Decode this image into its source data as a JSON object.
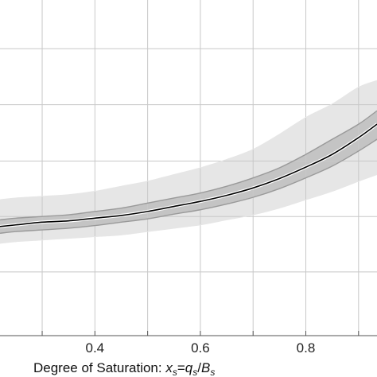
{
  "chart_data": {
    "type": "line",
    "title": "",
    "xlabel_prefix": "Degree of Saturation: ",
    "xlabel_x": "x",
    "xlabel_x_sub": "s",
    "xlabel_eq": "=",
    "xlabel_q": "q",
    "xlabel_q_sub": "s",
    "xlabel_slash": "/",
    "xlabel_B": "B",
    "xlabel_B_sub": "s",
    "ylabel": "",
    "xlim": [
      0.22,
      0.935
    ],
    "ylim": [
      0.0,
      1.0
    ],
    "x_ticks": [
      0.4,
      0.6,
      0.8
    ],
    "x_tick_labels": [
      "0.4",
      "0.6",
      "0.8"
    ],
    "x_grid": [
      0.3,
      0.4,
      0.5,
      0.6,
      0.7,
      0.8,
      0.9
    ],
    "y_grid": [
      0.855,
      0.688,
      0.52,
      0.355,
      0.19
    ],
    "grid": true,
    "colors": {
      "outer_band": "#e6e6e6",
      "inner_band": "#c4c4c4",
      "band_edge": "#9a9a9a",
      "median": "#000000",
      "grid": "#c8c8c8",
      "axis": "#555555"
    },
    "x": [
      0.22,
      0.25,
      0.3,
      0.35,
      0.4,
      0.45,
      0.5,
      0.55,
      0.6,
      0.65,
      0.7,
      0.75,
      0.8,
      0.85,
      0.9,
      0.935
    ],
    "series": [
      {
        "role": "outer_upper",
        "values": [
          0.405,
          0.41,
          0.415,
          0.42,
          0.43,
          0.445,
          0.46,
          0.48,
          0.5,
          0.525,
          0.555,
          0.6,
          0.65,
          0.69,
          0.74,
          0.76
        ]
      },
      {
        "role": "inner_upper",
        "values": [
          0.345,
          0.35,
          0.355,
          0.36,
          0.37,
          0.38,
          0.395,
          0.41,
          0.425,
          0.445,
          0.47,
          0.5,
          0.54,
          0.585,
          0.63,
          0.67
        ]
      },
      {
        "role": "median",
        "values": [
          0.325,
          0.33,
          0.338,
          0.342,
          0.35,
          0.358,
          0.37,
          0.385,
          0.4,
          0.418,
          0.44,
          0.468,
          0.502,
          0.54,
          0.59,
          0.63
        ]
      },
      {
        "role": "inner_lower",
        "values": [
          0.305,
          0.31,
          0.315,
          0.32,
          0.328,
          0.338,
          0.348,
          0.362,
          0.375,
          0.392,
          0.412,
          0.438,
          0.47,
          0.505,
          0.55,
          0.585
        ]
      },
      {
        "role": "outer_lower",
        "values": [
          0.275,
          0.28,
          0.285,
          0.29,
          0.295,
          0.3,
          0.31,
          0.32,
          0.33,
          0.345,
          0.36,
          0.38,
          0.405,
          0.43,
          0.46,
          0.48
        ]
      }
    ]
  }
}
